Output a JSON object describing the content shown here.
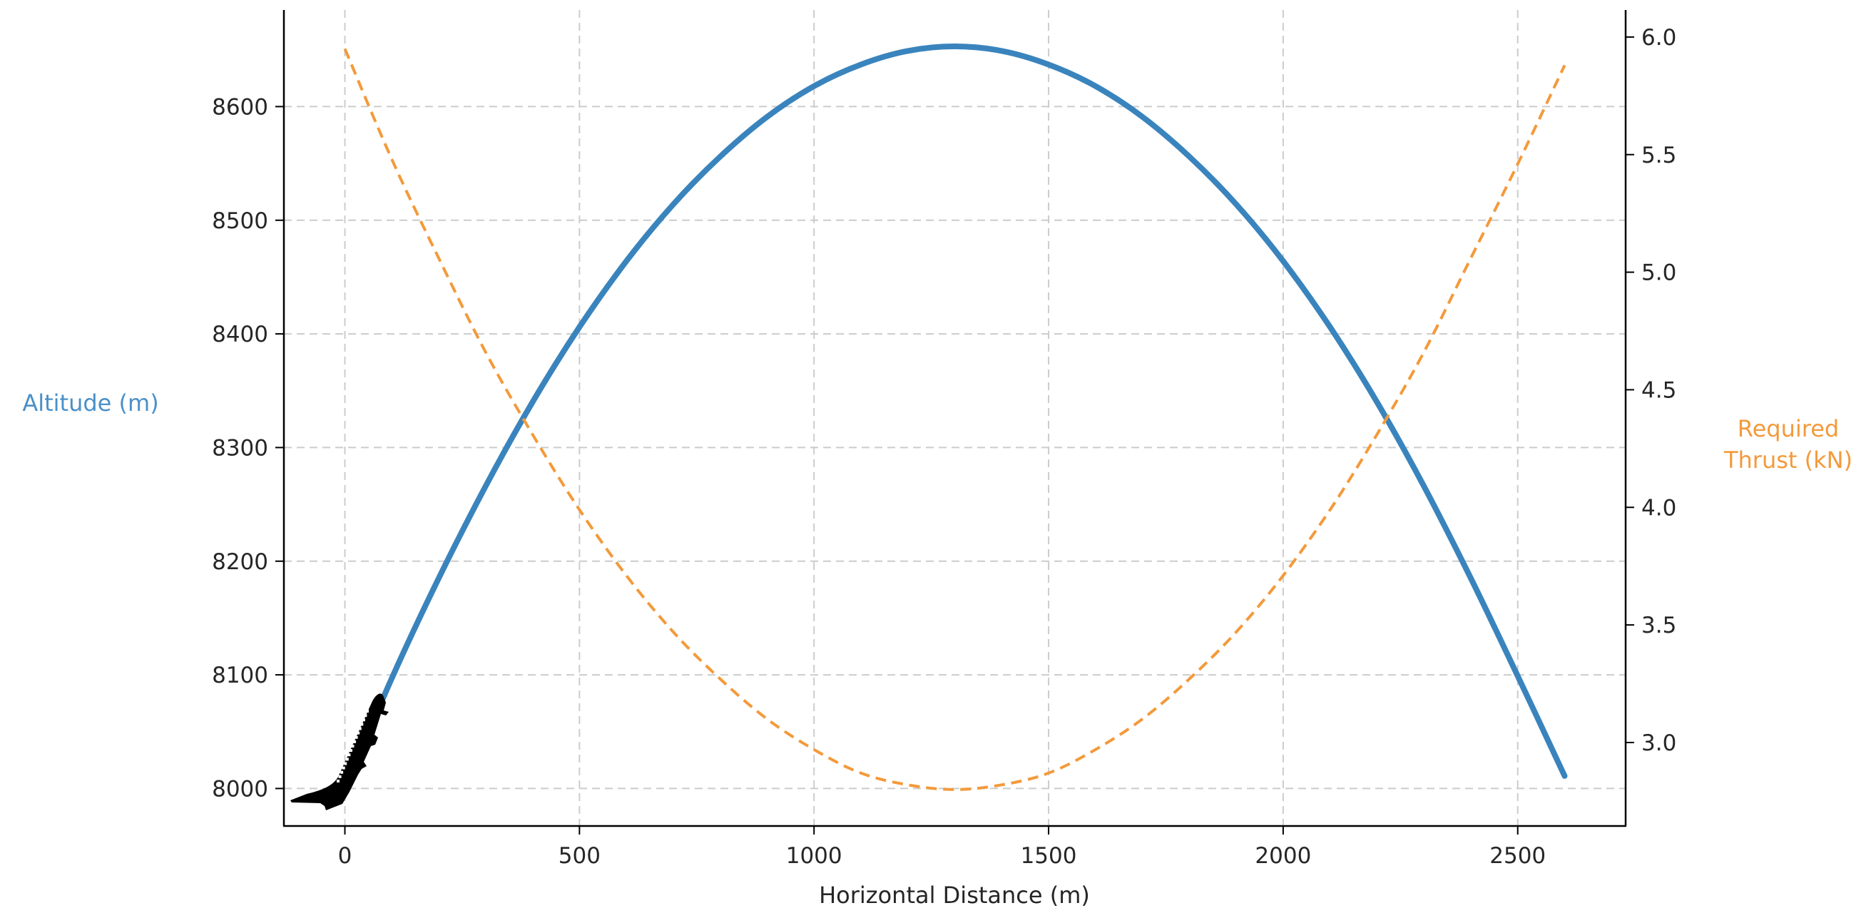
{
  "chart_data": {
    "type": "line",
    "title": "",
    "xlabel": "Horizontal Distance (m)",
    "ylabel": "Altitude (m)",
    "y2label": "Required Thrust (kN)",
    "y2label_lines": [
      "Required",
      "Thrust (kN)"
    ],
    "xlim": [
      -130,
      2730
    ],
    "ylim": [
      7967,
      8685
    ],
    "y2lim": [
      2.645,
      6.115
    ],
    "grid": true,
    "legend": null,
    "x_ticks": [
      0,
      500,
      1000,
      1500,
      2000,
      2500
    ],
    "x_tick_labels": [
      "0",
      "500",
      "1000",
      "1500",
      "2000",
      "2500"
    ],
    "y_ticks": [
      8000,
      8100,
      8200,
      8300,
      8400,
      8500,
      8600
    ],
    "y_tick_labels": [
      "8000",
      "8100",
      "8200",
      "8300",
      "8400",
      "8500",
      "8600"
    ],
    "y2_ticks": [
      3.0,
      3.5,
      4.0,
      4.5,
      5.0,
      5.5,
      6.0
    ],
    "y2_tick_labels": [
      "3.0",
      "3.5",
      "4.0",
      "4.5",
      "5.0",
      "5.5",
      "6.0"
    ],
    "x": [
      0,
      100,
      200,
      300,
      400,
      500,
      600,
      700,
      800,
      900,
      1000,
      1100,
      1200,
      1300,
      1400,
      1500,
      1600,
      1700,
      1800,
      1900,
      2000,
      2100,
      2200,
      2300,
      2400,
      2500,
      2600
    ],
    "series": [
      {
        "name": "Altitude (m)",
        "axis": "left",
        "color": "#3a84bd",
        "style": "solid",
        "values": [
          8000,
          8097,
          8185,
          8266,
          8340,
          8406,
          8464,
          8514,
          8556,
          8591,
          8618,
          8637,
          8649,
          8653,
          8649,
          8637,
          8618,
          8591,
          8556,
          8514,
          8464,
          8406,
          8340,
          8266,
          8185,
          8099,
          8011
        ]
      },
      {
        "name": "Required Thrust (kN)",
        "axis": "right",
        "color": "#f39a3b",
        "style": "dashed",
        "values": [
          5.95,
          5.48,
          5.06,
          4.66,
          4.31,
          3.99,
          3.71,
          3.47,
          3.27,
          3.1,
          2.97,
          2.87,
          2.82,
          2.8,
          2.82,
          2.87,
          2.97,
          3.1,
          3.27,
          3.47,
          3.71,
          3.99,
          4.31,
          4.66,
          5.06,
          5.46,
          5.88
        ]
      }
    ],
    "annotations": [
      {
        "type": "icon",
        "name": "airplane-icon",
        "x": 0,
        "y": 8000,
        "description": "black airplane silhouette at start of flight path, climbing"
      }
    ]
  },
  "colors": {
    "altitude": "#3a84bd",
    "altitude_label": "#4a90c8",
    "thrust": "#f39a3b",
    "grid": "#cccccc",
    "axis": "#000000",
    "text": "#262626"
  }
}
